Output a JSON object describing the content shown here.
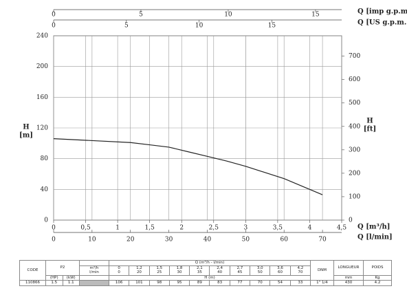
{
  "chart_data": {
    "type": "line",
    "y_label": "H",
    "y_unit": "[m]",
    "y2_label": "H",
    "y2_unit": "[ft]",
    "ylim": [
      0,
      240
    ],
    "yticks": [
      0,
      40,
      80,
      120,
      160,
      200,
      240
    ],
    "y2lim": [
      0,
      787
    ],
    "y2ticks": [
      0,
      100,
      200,
      300,
      400,
      500,
      600,
      700
    ],
    "x_axes": [
      {
        "label": "Q [m³/h]",
        "position": "bottom",
        "lim": [
          0,
          4.5
        ],
        "ticks": [
          0,
          {
            "value": 0.5,
            "label": "0,5"
          },
          1,
          {
            "value": 1.5,
            "label": "1,5"
          },
          2,
          {
            "value": 2.5,
            "label": "2,5"
          },
          3,
          {
            "value": 3.5,
            "label": "3,5"
          },
          4,
          {
            "value": 4.5,
            "label": "4,5"
          }
        ]
      },
      {
        "label": "Q [l/min]",
        "position": "bottom",
        "lim": [
          0,
          75
        ],
        "ticks": [
          0,
          10,
          20,
          30,
          40,
          50,
          60,
          70
        ]
      },
      {
        "label": "Q [imp g.p.m]",
        "position": "top",
        "lim": [
          0,
          16.5
        ],
        "ticks": [
          0,
          5,
          10,
          15
        ]
      },
      {
        "label": "Q [US g.p.m.]",
        "position": "top",
        "lim": [
          0,
          19.8
        ],
        "ticks": [
          0,
          5,
          10,
          15
        ]
      }
    ],
    "grid": true,
    "series": [
      {
        "color": "#222222",
        "x_axis": 1,
        "x": [
          0,
          20,
          25,
          30,
          35,
          40,
          45,
          50,
          60,
          70
        ],
        "values": [
          106,
          101,
          98,
          95,
          89,
          83,
          77,
          70,
          54,
          33
        ]
      }
    ]
  },
  "table": {
    "headers": {
      "code": "CODE",
      "p2": "P2",
      "q": "Q (m³/h - l/min)",
      "dnm": "DNM",
      "length": "LONGUEUR",
      "weight": "POIDS"
    },
    "flow_units": [
      "m³/h",
      "l/min"
    ],
    "flow_m3h": [
      "0",
      "1,2",
      "1,5",
      "1,8",
      "2,1",
      "2,4",
      "2,7",
      "3,0",
      "3,6",
      "4,2"
    ],
    "flow_lmin": [
      "0",
      "20",
      "25",
      "30",
      "35",
      "40",
      "45",
      "50",
      "60",
      "70"
    ],
    "power_units": [
      "(HP)",
      "(kW)"
    ],
    "head_label": "H (m)",
    "length_unit": "mm",
    "weight_unit": "Kg",
    "row": {
      "code": "110866",
      "hp": "1.5",
      "kw": "1.1",
      "heads": [
        "106",
        "101",
        "98",
        "95",
        "89",
        "83",
        "77",
        "70",
        "54",
        "33"
      ],
      "dnm": "1\" 1/4",
      "length": "430",
      "weight": "4.2"
    }
  }
}
